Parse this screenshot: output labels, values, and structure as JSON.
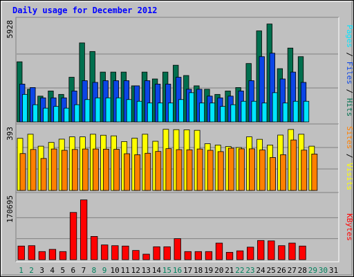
{
  "chart_data": [
    {
      "type": "bar",
      "panel": "pages-files-hits",
      "title": "Daily usage for December 2012",
      "ytick_label": "5928",
      "ylim": [
        0,
        5928
      ],
      "legend_words": [
        "Pages",
        "Files",
        "Hits"
      ],
      "legend_separator": " / ",
      "categories": [
        "1",
        "2",
        "3",
        "4",
        "5",
        "6",
        "7",
        "8",
        "9",
        "10",
        "11",
        "12",
        "13",
        "14",
        "15",
        "16",
        "17",
        "18",
        "19",
        "20",
        "21",
        "22",
        "23",
        "24",
        "25",
        "26",
        "27",
        "28",
        "29",
        "30",
        "31"
      ],
      "weekend_days": [
        "1",
        "2",
        "8",
        "9",
        "15",
        "16",
        "22",
        "23",
        "29",
        "30"
      ],
      "series": [
        {
          "name": "Hits",
          "color": "#006f4e",
          "values": [
            3500,
            1900,
            1500,
            1800,
            1600,
            2600,
            4600,
            4100,
            2900,
            2900,
            2900,
            2100,
            2900,
            2500,
            2900,
            3300,
            2700,
            2100,
            1900,
            1600,
            1800,
            2000,
            3400,
            5300,
            5700,
            3100,
            4300,
            3800,
            0,
            0,
            0
          ]
        },
        {
          "name": "Files",
          "color": "#0b45e6",
          "values": [
            2200,
            2000,
            1400,
            1400,
            1400,
            1800,
            2400,
            2300,
            2400,
            2400,
            2400,
            2100,
            2400,
            2200,
            2200,
            2600,
            1900,
            1900,
            1500,
            1400,
            1500,
            1800,
            2400,
            3800,
            4000,
            2500,
            2900,
            2300,
            0,
            0,
            0
          ]
        },
        {
          "name": "Pages",
          "color": "#00e5ff",
          "values": [
            1600,
            1000,
            800,
            900,
            800,
            1000,
            1300,
            1400,
            1400,
            1400,
            1300,
            1200,
            1100,
            1100,
            1100,
            1300,
            1700,
            1100,
            1100,
            900,
            1000,
            1200,
            1200,
            1100,
            1700,
            1100,
            1200,
            1200,
            0,
            0,
            0
          ]
        }
      ]
    },
    {
      "type": "bar",
      "panel": "visits-sites",
      "ytick_label": "393",
      "ylim": [
        0,
        393
      ],
      "legend_words": [
        "Sites",
        "Visits"
      ],
      "legend_separator": " / ",
      "categories": [
        "1",
        "2",
        "3",
        "4",
        "5",
        "6",
        "7",
        "8",
        "9",
        "10",
        "11",
        "12",
        "13",
        "14",
        "15",
        "16",
        "17",
        "18",
        "19",
        "20",
        "21",
        "22",
        "23",
        "24",
        "25",
        "26",
        "27",
        "28",
        "29",
        "30",
        "31"
      ],
      "series": [
        {
          "name": "Visits",
          "color": "#ffff00",
          "values": [
            318,
            343,
            270,
            293,
            313,
            327,
            327,
            343,
            337,
            333,
            298,
            319,
            343,
            300,
            373,
            371,
            370,
            367,
            285,
            277,
            268,
            262,
            327,
            312,
            277,
            338,
            372,
            343,
            270,
            0,
            0
          ]
        },
        {
          "name": "Sites",
          "color": "#ff8000",
          "values": [
            225,
            250,
            195,
            253,
            245,
            250,
            253,
            253,
            252,
            251,
            224,
            218,
            227,
            238,
            255,
            249,
            248,
            253,
            245,
            237,
            258,
            254,
            254,
            247,
            201,
            218,
            308,
            246,
            222,
            0,
            0
          ]
        }
      ]
    },
    {
      "type": "bar",
      "panel": "kbytes",
      "ytick_label": "170695",
      "ylim": [
        0,
        170695
      ],
      "legend_words": [
        "KBytes"
      ],
      "categories": [
        "1",
        "2",
        "3",
        "4",
        "5",
        "6",
        "7",
        "8",
        "9",
        "10",
        "11",
        "12",
        "13",
        "14",
        "15",
        "16",
        "17",
        "18",
        "19",
        "20",
        "21",
        "22",
        "23",
        "24",
        "25",
        "26",
        "27",
        "28",
        "29",
        "30",
        "31"
      ],
      "series": [
        {
          "name": "KBytes",
          "color": "#ff0000",
          "values": [
            37000,
            38000,
            22000,
            28000,
            22000,
            128000,
            162000,
            63000,
            40000,
            38000,
            37000,
            25000,
            15000,
            35000,
            35000,
            57000,
            22000,
            22000,
            22000,
            45000,
            20000,
            24000,
            34000,
            52000,
            51000,
            38000,
            45000,
            37000,
            0,
            0,
            0
          ]
        }
      ]
    }
  ],
  "colors": {
    "frame_bg": "#c0c0c0",
    "plot_bg": "#c0c0c0",
    "title": "#0000ff",
    "weekday_label": "#000000",
    "weekend_label": "#00805c"
  }
}
